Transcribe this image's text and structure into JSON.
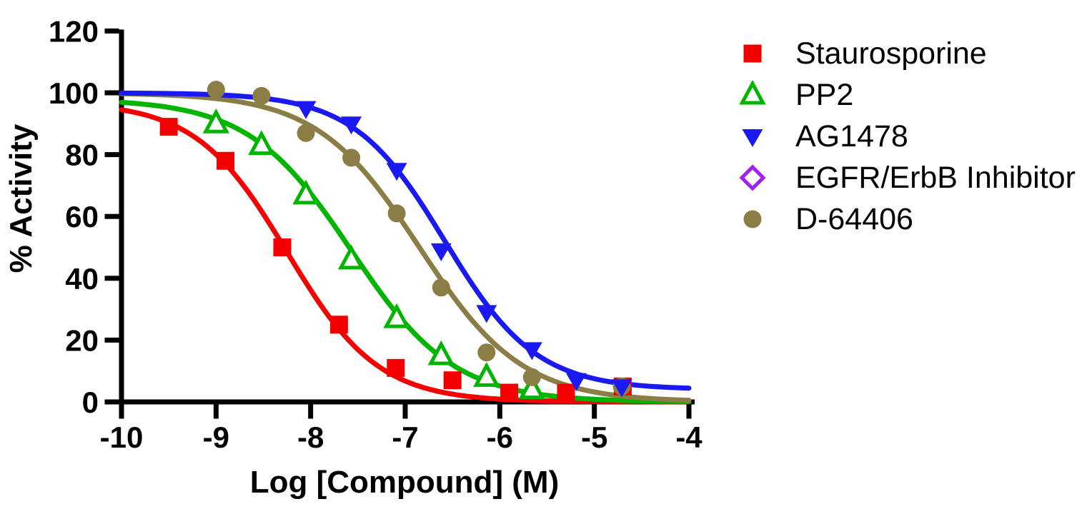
{
  "chart_data": {
    "type": "line",
    "title": "",
    "xlabel": "Log [Compound] (M)",
    "ylabel": "% Activity",
    "xlim": [
      -10,
      -4
    ],
    "ylim": [
      0,
      120
    ],
    "x_tick_values": [
      -10,
      -9,
      -8,
      -7,
      -6,
      -5,
      -4
    ],
    "x_tick_labels": [
      "-10",
      "-9",
      "-8",
      "-7",
      "-6",
      "-5",
      "-4"
    ],
    "y_tick_values": [
      0,
      20,
      40,
      60,
      80,
      100,
      120
    ],
    "y_tick_labels": [
      "0",
      "20",
      "40",
      "60",
      "80",
      "100",
      "120"
    ],
    "grid": false,
    "legend_position": "right",
    "background": "#ffffff",
    "axis_color": "#000000",
    "series": [
      {
        "name": "Staurosporine",
        "color": "#f40000",
        "marker": "square",
        "marker_style": "filled",
        "points": {
          "x": [
            -9.5,
            -8.9,
            -8.3,
            -7.7,
            -7.1,
            -6.5,
            -5.9,
            -5.3,
            -4.7
          ],
          "y": [
            89,
            78,
            50,
            25,
            11,
            7,
            3,
            3,
            5
          ]
        },
        "fit": {
          "top": 97,
          "bottom": 0,
          "logIC50": -8.25,
          "hill": 0.9
        }
      },
      {
        "name": "PP2",
        "color": "#00b400",
        "marker": "triangle-up",
        "marker_style": "open",
        "points": {
          "x": [
            -9.0,
            -8.52,
            -8.05,
            -7.57,
            -7.09,
            -6.62,
            -6.14,
            -5.66
          ],
          "y": [
            90,
            83,
            67,
            46,
            27,
            15,
            8,
            4
          ]
        },
        "fit": {
          "top": 98,
          "bottom": 0,
          "logIC50": -7.57,
          "hill": 0.8
        }
      },
      {
        "name": "AG1478",
        "color": "#1a1af0",
        "marker": "triangle-down",
        "marker_style": "filled",
        "points": {
          "x": [
            -8.05,
            -7.57,
            -7.09,
            -6.62,
            -6.14,
            -5.66,
            -5.19,
            -4.71
          ],
          "y": [
            95,
            90,
            75,
            49,
            29,
            17,
            7,
            5
          ]
        },
        "fit": {
          "top": 100,
          "bottom": 4,
          "logIC50": -6.58,
          "hill": 0.9
        }
      },
      {
        "name": "EGFR/ErbB Inhibitor",
        "color": "#a020f0",
        "marker": "diamond",
        "marker_style": "open",
        "points": {
          "x": [],
          "y": []
        },
        "fit": null
      },
      {
        "name": "D-64406",
        "color": "#8a7d45",
        "marker": "circle",
        "marker_style": "filled",
        "points": {
          "x": [
            -9.0,
            -8.52,
            -8.05,
            -7.57,
            -7.09,
            -6.62,
            -6.14,
            -5.66,
            -4.71
          ],
          "y": [
            101,
            99,
            87,
            79,
            61,
            37,
            16,
            8,
            5
          ]
        },
        "fit": {
          "top": 100,
          "bottom": 0,
          "logIC50": -6.85,
          "hill": 0.8
        }
      }
    ]
  }
}
